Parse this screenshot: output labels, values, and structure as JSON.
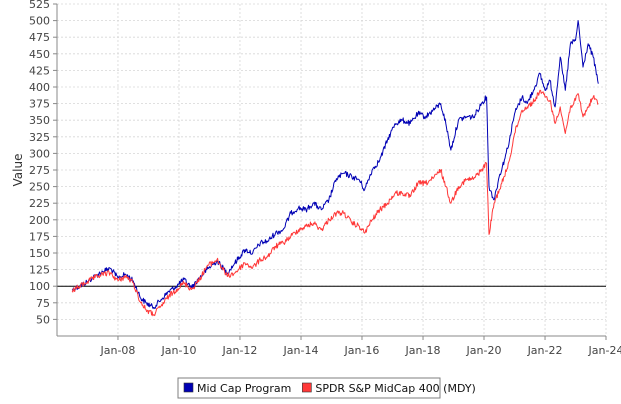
{
  "chart_data": {
    "type": "line",
    "title": "",
    "xlabel": "",
    "ylabel": "Value",
    "xlim": [
      "2006-01-01",
      "2024-01-01"
    ],
    "ylim": [
      25,
      525
    ],
    "x_ticks": [
      "Jan-08",
      "Jan-10",
      "Jan-12",
      "Jan-14",
      "Jan-16",
      "Jan-18",
      "Jan-20",
      "Jan-22",
      "Jan-24"
    ],
    "x_tick_dates": [
      "2008-01-01",
      "2010-01-01",
      "2012-01-01",
      "2014-01-01",
      "2016-01-01",
      "2018-01-01",
      "2020-01-01",
      "2022-01-01",
      "2024-01-01"
    ],
    "y_ticks": [
      50,
      75,
      100,
      125,
      150,
      175,
      200,
      225,
      250,
      275,
      300,
      325,
      350,
      375,
      400,
      425,
      450,
      475,
      500,
      525
    ],
    "reference_line": 100,
    "grid": true,
    "legend_position": "bottom",
    "series": [
      {
        "name": "Mid Cap Program",
        "color": "#0000b4",
        "points": [
          [
            "2006-07-01",
            95
          ],
          [
            "2006-10-01",
            100
          ],
          [
            "2007-01-01",
            107
          ],
          [
            "2007-04-01",
            115
          ],
          [
            "2007-07-01",
            122
          ],
          [
            "2007-10-01",
            127
          ],
          [
            "2008-01-01",
            112
          ],
          [
            "2008-04-01",
            118
          ],
          [
            "2008-07-01",
            108
          ],
          [
            "2008-10-01",
            82
          ],
          [
            "2008-12-01",
            75
          ],
          [
            "2009-03-01",
            68
          ],
          [
            "2009-06-01",
            80
          ],
          [
            "2009-09-01",
            92
          ],
          [
            "2009-12-01",
            100
          ],
          [
            "2010-03-01",
            110
          ],
          [
            "2010-06-01",
            98
          ],
          [
            "2010-09-01",
            112
          ],
          [
            "2010-12-01",
            125
          ],
          [
            "2011-04-01",
            138
          ],
          [
            "2011-08-01",
            120
          ],
          [
            "2011-11-01",
            135
          ],
          [
            "2012-03-01",
            155
          ],
          [
            "2012-06-01",
            150
          ],
          [
            "2012-09-01",
            165
          ],
          [
            "2012-12-01",
            168
          ],
          [
            "2013-03-01",
            180
          ],
          [
            "2013-06-01",
            185
          ],
          [
            "2013-09-01",
            210
          ],
          [
            "2013-12-01",
            218
          ],
          [
            "2014-03-01",
            215
          ],
          [
            "2014-06-01",
            225
          ],
          [
            "2014-09-01",
            215
          ],
          [
            "2014-12-01",
            230
          ],
          [
            "2015-03-01",
            262
          ],
          [
            "2015-06-01",
            270
          ],
          [
            "2015-09-01",
            265
          ],
          [
            "2015-12-01",
            260
          ],
          [
            "2016-02-01",
            245
          ],
          [
            "2016-05-01",
            275
          ],
          [
            "2016-08-01",
            290
          ],
          [
            "2016-11-01",
            320
          ],
          [
            "2017-02-01",
            345
          ],
          [
            "2017-05-01",
            350
          ],
          [
            "2017-08-01",
            345
          ],
          [
            "2017-11-01",
            360
          ],
          [
            "2018-02-01",
            355
          ],
          [
            "2018-05-01",
            365
          ],
          [
            "2018-08-01",
            375
          ],
          [
            "2018-10-01",
            345
          ],
          [
            "2018-12-01",
            305
          ],
          [
            "2019-03-01",
            350
          ],
          [
            "2019-06-01",
            355
          ],
          [
            "2019-09-01",
            355
          ],
          [
            "2019-12-01",
            375
          ],
          [
            "2020-02-01",
            385
          ],
          [
            "2020-03-01",
            250
          ],
          [
            "2020-05-01",
            230
          ],
          [
            "2020-07-01",
            265
          ],
          [
            "2020-09-01",
            290
          ],
          [
            "2020-11-01",
            320
          ],
          [
            "2021-01-01",
            360
          ],
          [
            "2021-04-01",
            385
          ],
          [
            "2021-06-01",
            375
          ],
          [
            "2021-09-01",
            400
          ],
          [
            "2021-11-01",
            420
          ],
          [
            "2022-01-01",
            395
          ],
          [
            "2022-03-01",
            410
          ],
          [
            "2022-05-01",
            370
          ],
          [
            "2022-07-01",
            445
          ],
          [
            "2022-09-01",
            395
          ],
          [
            "2022-11-01",
            465
          ],
          [
            "2023-01-01",
            470
          ],
          [
            "2023-02-01",
            500
          ],
          [
            "2023-04-01",
            430
          ],
          [
            "2023-06-01",
            465
          ],
          [
            "2023-08-01",
            445
          ],
          [
            "2023-10-01",
            405
          ]
        ]
      },
      {
        "name": "SPDR S&P MidCap 400 (MDY)",
        "color": "#ff3838",
        "points": [
          [
            "2006-07-01",
            93
          ],
          [
            "2006-10-01",
            100
          ],
          [
            "2007-01-01",
            107
          ],
          [
            "2007-04-01",
            113
          ],
          [
            "2007-07-01",
            118
          ],
          [
            "2007-10-01",
            120
          ],
          [
            "2008-01-01",
            108
          ],
          [
            "2008-04-01",
            115
          ],
          [
            "2008-07-01",
            105
          ],
          [
            "2008-10-01",
            75
          ],
          [
            "2008-12-01",
            65
          ],
          [
            "2009-03-01",
            57
          ],
          [
            "2009-06-01",
            70
          ],
          [
            "2009-09-01",
            85
          ],
          [
            "2009-12-01",
            95
          ],
          [
            "2010-03-01",
            105
          ],
          [
            "2010-06-01",
            95
          ],
          [
            "2010-09-01",
            110
          ],
          [
            "2010-12-01",
            130
          ],
          [
            "2011-04-01",
            140
          ],
          [
            "2011-08-01",
            115
          ],
          [
            "2011-11-01",
            120
          ],
          [
            "2012-03-01",
            135
          ],
          [
            "2012-06-01",
            128
          ],
          [
            "2012-09-01",
            140
          ],
          [
            "2012-12-01",
            145
          ],
          [
            "2013-03-01",
            160
          ],
          [
            "2013-06-01",
            165
          ],
          [
            "2013-09-01",
            175
          ],
          [
            "2013-12-01",
            185
          ],
          [
            "2014-03-01",
            190
          ],
          [
            "2014-06-01",
            195
          ],
          [
            "2014-09-01",
            185
          ],
          [
            "2014-12-01",
            200
          ],
          [
            "2015-03-01",
            210
          ],
          [
            "2015-06-01",
            210
          ],
          [
            "2015-09-01",
            195
          ],
          [
            "2015-12-01",
            190
          ],
          [
            "2016-02-01",
            180
          ],
          [
            "2016-05-01",
            200
          ],
          [
            "2016-08-01",
            215
          ],
          [
            "2016-11-01",
            225
          ],
          [
            "2017-02-01",
            240
          ],
          [
            "2017-05-01",
            240
          ],
          [
            "2017-08-01",
            235
          ],
          [
            "2017-11-01",
            255
          ],
          [
            "2018-02-01",
            255
          ],
          [
            "2018-05-01",
            262
          ],
          [
            "2018-08-01",
            275
          ],
          [
            "2018-10-01",
            250
          ],
          [
            "2018-12-01",
            225
          ],
          [
            "2019-03-01",
            250
          ],
          [
            "2019-06-01",
            260
          ],
          [
            "2019-09-01",
            262
          ],
          [
            "2019-12-01",
            275
          ],
          [
            "2020-02-01",
            285
          ],
          [
            "2020-03-01",
            178
          ],
          [
            "2020-05-01",
            225
          ],
          [
            "2020-07-01",
            245
          ],
          [
            "2020-09-01",
            265
          ],
          [
            "2020-11-01",
            290
          ],
          [
            "2021-01-01",
            330
          ],
          [
            "2021-04-01",
            365
          ],
          [
            "2021-06-01",
            370
          ],
          [
            "2021-09-01",
            380
          ],
          [
            "2021-11-01",
            395
          ],
          [
            "2022-01-01",
            385
          ],
          [
            "2022-03-01",
            380
          ],
          [
            "2022-05-01",
            345
          ],
          [
            "2022-07-01",
            370
          ],
          [
            "2022-09-01",
            330
          ],
          [
            "2022-11-01",
            370
          ],
          [
            "2023-01-01",
            380
          ],
          [
            "2023-02-01",
            390
          ],
          [
            "2023-04-01",
            355
          ],
          [
            "2023-06-01",
            370
          ],
          [
            "2023-08-01",
            385
          ],
          [
            "2023-10-01",
            375
          ]
        ]
      }
    ]
  }
}
